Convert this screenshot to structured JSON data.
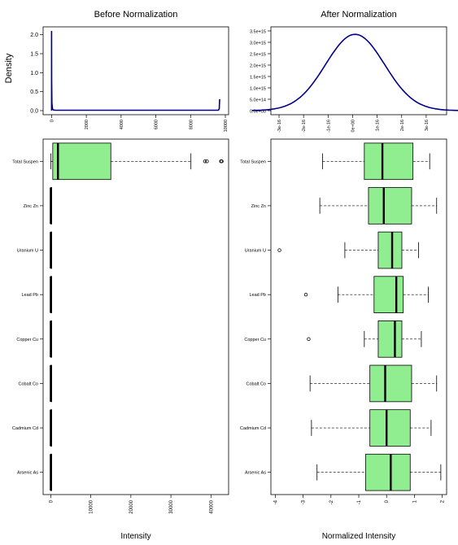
{
  "chart_data": [
    {
      "type": "line",
      "title": "Before Normalization",
      "ylabel": "Density",
      "xlim": [
        -300,
        10000
      ],
      "ylim": [
        0,
        2.1
      ],
      "x_ticks": [
        "0",
        "2000",
        "4000",
        "6000",
        "8000",
        "10000"
      ],
      "y_ticks": [
        "0.0",
        "0.5",
        "1.0",
        "1.5",
        "2.0"
      ],
      "line_color": "#00008b",
      "series": [
        {
          "x": [
            0,
            0,
            5,
            20,
            50,
            100,
            200,
            500,
            1000,
            5000,
            9000,
            9600,
            9650,
            9660,
            9670
          ],
          "y": [
            0,
            2.1,
            0.8,
            0.2,
            0.05,
            0.02,
            0.01,
            0.01,
            0.01,
            0.01,
            0.01,
            0.01,
            0.05,
            0.15,
            0.3
          ]
        }
      ]
    },
    {
      "type": "line",
      "title": "After Normalization",
      "xlim": [
        -3.2e-16,
        3.7e-16
      ],
      "ylim": [
        0,
        3500000000000000.0
      ],
      "x_ticks": [
        "-3e-16",
        "-2e-16",
        "-1e-16",
        "0e+00",
        "1e-16",
        "2e-16",
        "3e-16"
      ],
      "y_ticks": [
        "0.0e+00",
        "5.0e+14",
        "1.0e+15",
        "1.5e+15",
        "2.0e+15",
        "2.5e+15",
        "3.0e+15",
        "3.5e+15"
      ],
      "line_color": "#00008b",
      "series": [
        {
          "mean": 1e-17,
          "sd": 1.2e-16,
          "peak": 3350000000000000.0
        }
      ]
    },
    {
      "type": "box",
      "xlabel": "Intensity",
      "xlim": [
        -1500,
        44000
      ],
      "x_ticks": [
        "0",
        "10000",
        "20000",
        "30000",
        "40000"
      ],
      "box_color": "#90ee90",
      "categories": [
        "Total Suspen",
        "Zinc Zn",
        "Uranium U",
        "Lead Pb",
        "Copper Cu",
        "Cobalt Co",
        "Cadmium Cd",
        "Arsenic As"
      ],
      "boxes": [
        {
          "min": 0,
          "q1": 500,
          "median": 1800,
          "q3": 15000,
          "max": 35000,
          "outliers": [
            38500,
            39000,
            42500,
            42700
          ]
        },
        {
          "min": 0,
          "q1": 0,
          "median": 0,
          "q3": 5,
          "max": 10,
          "outliers": []
        },
        {
          "min": 0,
          "q1": 0,
          "median": 0,
          "q3": 5,
          "max": 10,
          "outliers": []
        },
        {
          "min": 0,
          "q1": 0,
          "median": 0,
          "q3": 5,
          "max": 10,
          "outliers": []
        },
        {
          "min": 0,
          "q1": 0,
          "median": 0,
          "q3": 5,
          "max": 10,
          "outliers": []
        },
        {
          "min": 0,
          "q1": 0,
          "median": 0,
          "q3": 5,
          "max": 10,
          "outliers": []
        },
        {
          "min": 0,
          "q1": 0,
          "median": 0,
          "q3": 5,
          "max": 10,
          "outliers": []
        },
        {
          "min": 0,
          "q1": 0,
          "median": 0,
          "q3": 5,
          "max": 10,
          "outliers": []
        }
      ]
    },
    {
      "type": "box",
      "xlabel": "Normalized Intensity",
      "xlim": [
        -4.1,
        2.1
      ],
      "x_ticks": [
        "-4",
        "-3",
        "-2",
        "-1",
        "0",
        "1",
        "2"
      ],
      "box_color": "#90ee90",
      "categories": [
        "Total Suspen",
        "Zinc Zn",
        "Uranium U",
        "Lead Pb",
        "Copper Cu",
        "Cobalt Co",
        "Cadmium Cd",
        "Arsenic As"
      ],
      "boxes": [
        {
          "min": -2.3,
          "q1": -0.8,
          "median": -0.15,
          "q3": 0.95,
          "max": 1.55,
          "outliers": []
        },
        {
          "min": -2.4,
          "q1": -0.65,
          "median": -0.1,
          "q3": 0.9,
          "max": 1.8,
          "outliers": []
        },
        {
          "min": -1.5,
          "q1": -0.3,
          "median": 0.2,
          "q3": 0.55,
          "max": 1.15,
          "outliers": [
            -3.85
          ]
        },
        {
          "min": -1.75,
          "q1": -0.45,
          "median": 0.35,
          "q3": 0.6,
          "max": 1.5,
          "outliers": [
            -2.9
          ]
        },
        {
          "min": -0.8,
          "q1": -0.3,
          "median": 0.3,
          "q3": 0.55,
          "max": 1.25,
          "outliers": [
            -2.8
          ]
        },
        {
          "min": -2.75,
          "q1": -0.6,
          "median": -0.05,
          "q3": 0.9,
          "max": 1.8,
          "outliers": []
        },
        {
          "min": -2.7,
          "q1": -0.6,
          "median": 0.0,
          "q3": 0.85,
          "max": 1.6,
          "outliers": []
        },
        {
          "min": -2.5,
          "q1": -0.75,
          "median": 0.15,
          "q3": 0.85,
          "max": 1.95,
          "outliers": []
        }
      ]
    }
  ]
}
